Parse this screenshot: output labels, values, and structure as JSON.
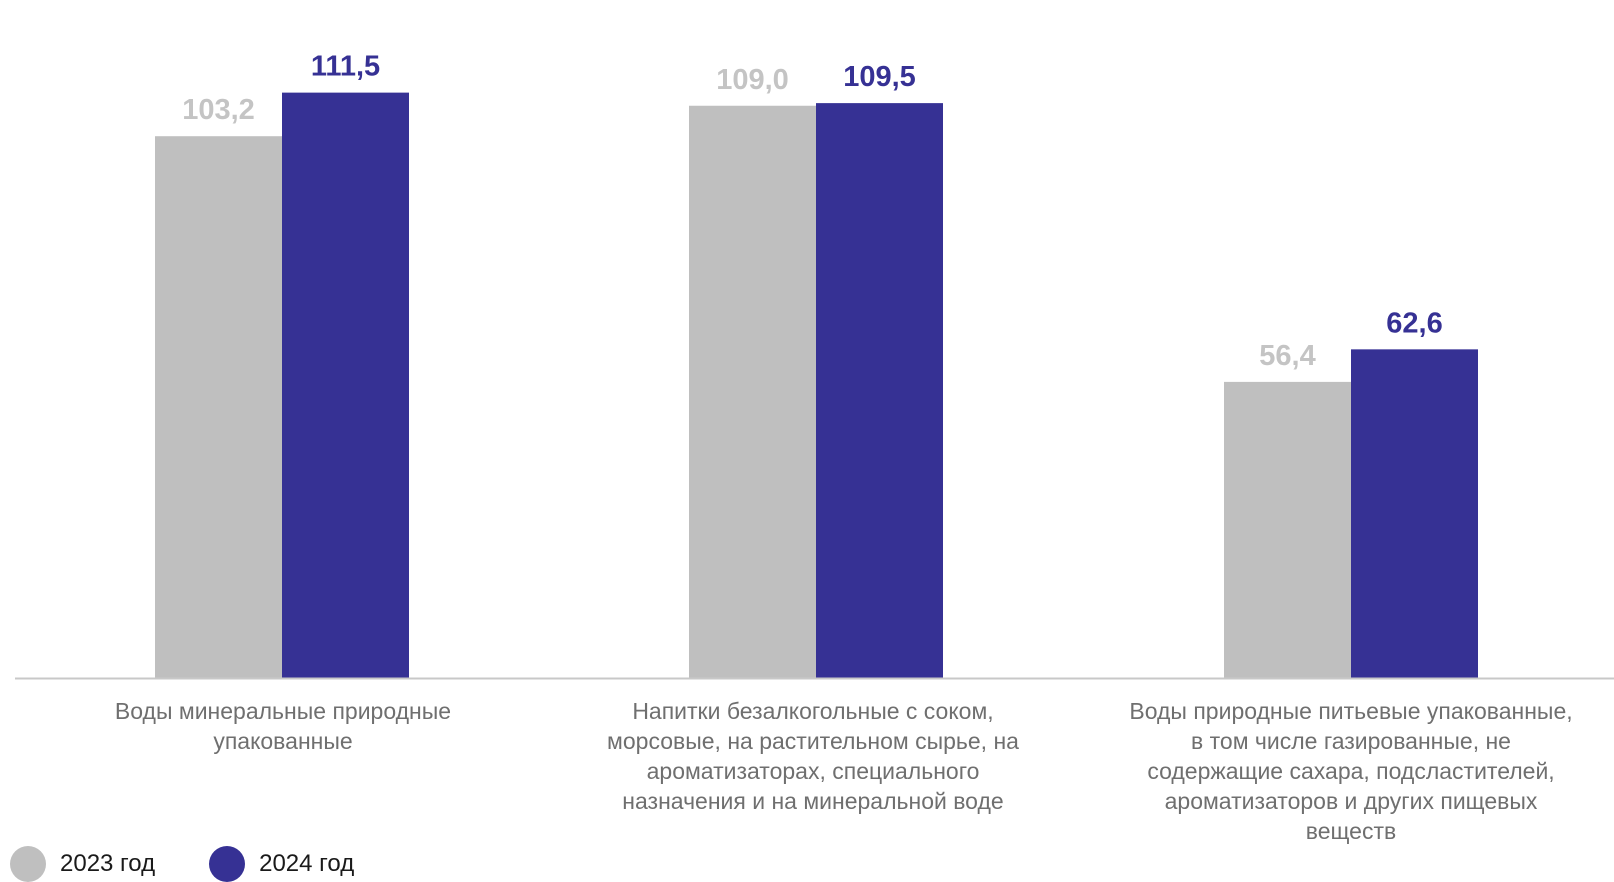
{
  "chart_data": {
    "type": "bar",
    "categories": [
      "Воды минеральные природные\nупакованные",
      "Напитки безалкогольные  с соком,\nморсовые,  на растительном сырье, на\nароматизаторах, специального\nназначения и на минеральной воде",
      "Воды природные питьевые упакованные,\nв том числе газированные, не\nсодержащие сахара, подсластителей,\nароматизаторов  и других пищевых\nвеществ"
    ],
    "series": [
      {
        "name": "2023 год",
        "color": "#bfbfbf",
        "values": [
          103.2,
          109.0,
          56.4
        ],
        "labels": [
          "103,2",
          "109,0",
          "56,4"
        ]
      },
      {
        "name": "2024 год",
        "color": "#363194",
        "values": [
          111.5,
          109.5,
          62.6
        ],
        "labels": [
          "111,5",
          "109,5",
          "62,6"
        ]
      }
    ],
    "ylim": [
      0,
      120
    ],
    "grid": false,
    "legend_position": "bottom-left"
  }
}
